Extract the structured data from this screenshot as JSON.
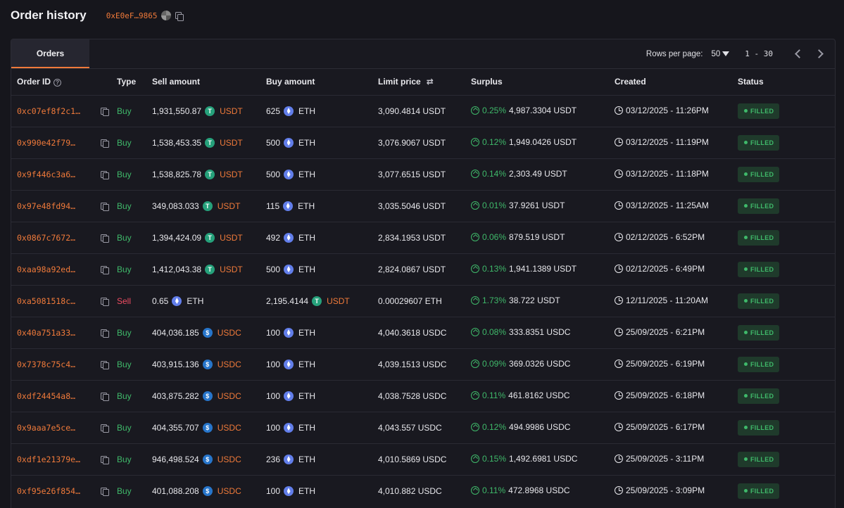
{
  "header": {
    "title": "Order history",
    "wallet": "0xE0eF…9865"
  },
  "tabs": [
    {
      "label": "Orders",
      "active": true
    }
  ],
  "pager": {
    "rows_label": "Rows per page:",
    "rows_value": "50",
    "range": "1 - 30"
  },
  "columns": {
    "order_id": "Order ID",
    "type": "Type",
    "sell": "Sell amount",
    "buy": "Buy amount",
    "limit": "Limit price",
    "surplus": "Surplus",
    "created": "Created",
    "status": "Status"
  },
  "colors": {
    "accent": "#f07a3a",
    "buy": "#3fb96a",
    "sell": "#ef4c62",
    "bg": "#16161c"
  },
  "orders": [
    {
      "id": "0xc07ef8f2c1…",
      "type": "Buy",
      "sell_amt": "1,931,550.87",
      "sell_tok": "USDT",
      "buy_amt": "625",
      "buy_tok": "ETH",
      "limit": "3,090.4814 USDT",
      "pct": "0.25%",
      "surplus": "4,987.3304 USDT",
      "created": "03/12/2025 - 11:26PM",
      "status": "FILLED"
    },
    {
      "id": "0x990e42f79…",
      "type": "Buy",
      "sell_amt": "1,538,453.35",
      "sell_tok": "USDT",
      "buy_amt": "500",
      "buy_tok": "ETH",
      "limit": "3,076.9067 USDT",
      "pct": "0.12%",
      "surplus": "1,949.0426 USDT",
      "created": "03/12/2025 - 11:19PM",
      "status": "FILLED"
    },
    {
      "id": "0x9f446c3a6…",
      "type": "Buy",
      "sell_amt": "1,538,825.78",
      "sell_tok": "USDT",
      "buy_amt": "500",
      "buy_tok": "ETH",
      "limit": "3,077.6515 USDT",
      "pct": "0.14%",
      "surplus": "2,303.49 USDT",
      "created": "03/12/2025 - 11:18PM",
      "status": "FILLED"
    },
    {
      "id": "0x97e48fd94…",
      "type": "Buy",
      "sell_amt": "349,083.033",
      "sell_tok": "USDT",
      "buy_amt": "115",
      "buy_tok": "ETH",
      "limit": "3,035.5046 USDT",
      "pct": "0.01%",
      "surplus": "37.9261 USDT",
      "created": "03/12/2025 - 11:25AM",
      "status": "FILLED"
    },
    {
      "id": "0x0867c7672…",
      "type": "Buy",
      "sell_amt": "1,394,424.09",
      "sell_tok": "USDT",
      "buy_amt": "492",
      "buy_tok": "ETH",
      "limit": "2,834.1953 USDT",
      "pct": "0.06%",
      "surplus": "879.519 USDT",
      "created": "02/12/2025 - 6:52PM",
      "status": "FILLED"
    },
    {
      "id": "0xaa98a92ed…",
      "type": "Buy",
      "sell_amt": "1,412,043.38",
      "sell_tok": "USDT",
      "buy_amt": "500",
      "buy_tok": "ETH",
      "limit": "2,824.0867 USDT",
      "pct": "0.13%",
      "surplus": "1,941.1389 USDT",
      "created": "02/12/2025 - 6:49PM",
      "status": "FILLED"
    },
    {
      "id": "0xa5081518c…",
      "type": "Sell",
      "sell_amt": "0.65",
      "sell_tok": "ETH",
      "buy_amt": "2,195.4144",
      "buy_tok": "USDT",
      "limit": "0.00029607 ETH",
      "pct": "1.73%",
      "surplus": "38.722 USDT",
      "created": "12/11/2025 - 11:20AM",
      "status": "FILLED"
    },
    {
      "id": "0x40a751a33…",
      "type": "Buy",
      "sell_amt": "404,036.185",
      "sell_tok": "USDC",
      "buy_amt": "100",
      "buy_tok": "ETH",
      "limit": "4,040.3618 USDC",
      "pct": "0.08%",
      "surplus": "333.8351 USDC",
      "created": "25/09/2025 - 6:21PM",
      "status": "FILLED"
    },
    {
      "id": "0x7378c75c4…",
      "type": "Buy",
      "sell_amt": "403,915.136",
      "sell_tok": "USDC",
      "buy_amt": "100",
      "buy_tok": "ETH",
      "limit": "4,039.1513 USDC",
      "pct": "0.09%",
      "surplus": "369.0326 USDC",
      "created": "25/09/2025 - 6:19PM",
      "status": "FILLED"
    },
    {
      "id": "0xdf24454a8…",
      "type": "Buy",
      "sell_amt": "403,875.282",
      "sell_tok": "USDC",
      "buy_amt": "100",
      "buy_tok": "ETH",
      "limit": "4,038.7528 USDC",
      "pct": "0.11%",
      "surplus": "461.8162 USDC",
      "created": "25/09/2025 - 6:18PM",
      "status": "FILLED"
    },
    {
      "id": "0x9aaa7e5ce…",
      "type": "Buy",
      "sell_amt": "404,355.707",
      "sell_tok": "USDC",
      "buy_amt": "100",
      "buy_tok": "ETH",
      "limit": "4,043.557 USDC",
      "pct": "0.12%",
      "surplus": "494.9986 USDC",
      "created": "25/09/2025 - 6:17PM",
      "status": "FILLED"
    },
    {
      "id": "0xdf1e21379e…",
      "type": "Buy",
      "sell_amt": "946,498.524",
      "sell_tok": "USDC",
      "buy_amt": "236",
      "buy_tok": "ETH",
      "limit": "4,010.5869 USDC",
      "pct": "0.15%",
      "surplus": "1,492.6981 USDC",
      "created": "25/09/2025 - 3:11PM",
      "status": "FILLED"
    },
    {
      "id": "0xf95e26f854…",
      "type": "Buy",
      "sell_amt": "401,088.208",
      "sell_tok": "USDC",
      "buy_amt": "100",
      "buy_tok": "ETH",
      "limit": "4,010.882 USDC",
      "pct": "0.11%",
      "surplus": "472.8968 USDC",
      "created": "25/09/2025 - 3:09PM",
      "status": "FILLED"
    }
  ]
}
